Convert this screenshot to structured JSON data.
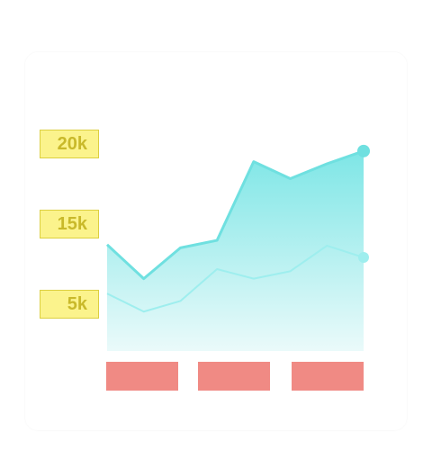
{
  "chart_data": {
    "type": "area",
    "title": "",
    "xlabel": "",
    "ylabel": "",
    "ytick_labels": [
      "20k",
      "15k",
      "5k"
    ],
    "categories": [
      "",
      "",
      ""
    ],
    "x": [
      0,
      1,
      2,
      3,
      4,
      5,
      6,
      7
    ],
    "ylim": [
      0,
      22000
    ],
    "series": [
      {
        "values": [
          10000,
          6800,
          9700,
          10400,
          17800,
          16200,
          17600,
          18800
        ]
      },
      {
        "values": [
          5400,
          3700,
          4700,
          7700,
          6800,
          7500,
          9900,
          8800
        ]
      }
    ],
    "colors": {
      "area_top": "#7ee6e6",
      "area_bottom": "#eafafa",
      "line_upper": "#6fe0e0",
      "line_lower": "#9eeeee",
      "ytick_bg": "#fbf38c",
      "xtick_bg": "#f08a84"
    },
    "grid": false,
    "legend": "none"
  }
}
